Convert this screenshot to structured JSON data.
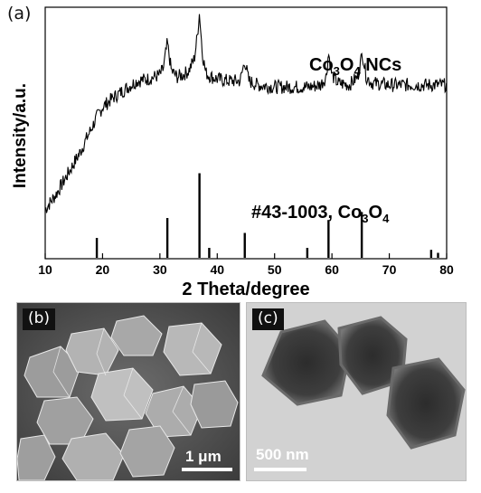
{
  "panel_a_label": "(a)",
  "panel_b_label": "(b)",
  "panel_c_label": "(c)",
  "sem_scale": "1 μm",
  "tem_scale": "500 nm",
  "chart_data": {
    "type": "line",
    "xlabel": "2 Theta/degree",
    "ylabel": "Intensity/a.u.",
    "xlim": [
      10,
      80
    ],
    "xticks": [
      10,
      20,
      30,
      40,
      50,
      60,
      70,
      80
    ],
    "sample_label": {
      "main": "Co",
      "sub1": "3",
      "mid": "O",
      "sub2": "4",
      "tail": " NCs"
    },
    "reference_label": {
      "main": "#43-1003, Co",
      "sub1": "3",
      "mid": "O",
      "sub2": "4"
    },
    "series": [
      {
        "name": "Co3O4 NCs",
        "x": [
          10,
          12,
          14,
          16,
          17,
          18,
          19,
          20,
          22,
          24,
          26,
          28,
          29,
          30,
          30.6,
          31.3,
          32,
          33,
          34,
          35,
          36,
          36.5,
          36.9,
          37.4,
          38,
          39,
          40,
          42,
          44,
          44.8,
          45.5,
          47,
          50,
          53,
          56,
          58,
          59,
          59.4,
          60,
          61,
          63,
          64.5,
          65.3,
          66,
          67,
          70,
          73,
          76,
          80
        ],
        "y": [
          0.02,
          0.1,
          0.2,
          0.3,
          0.36,
          0.42,
          0.48,
          0.53,
          0.58,
          0.62,
          0.66,
          0.67,
          0.68,
          0.69,
          0.72,
          0.85,
          0.71,
          0.68,
          0.69,
          0.71,
          0.77,
          0.88,
          1.0,
          0.8,
          0.7,
          0.68,
          0.67,
          0.66,
          0.66,
          0.76,
          0.66,
          0.64,
          0.63,
          0.63,
          0.63,
          0.64,
          0.68,
          0.8,
          0.69,
          0.65,
          0.64,
          0.68,
          0.8,
          0.68,
          0.65,
          0.64,
          0.64,
          0.64,
          0.64
        ]
      },
      {
        "name": "#43-1003, Co3O4",
        "type": "stick",
        "x": [
          19.0,
          31.3,
          36.9,
          38.6,
          44.8,
          55.7,
          59.4,
          65.2,
          77.3,
          78.5
        ],
        "y": [
          0.2,
          0.4,
          0.85,
          0.1,
          0.25,
          0.1,
          0.38,
          0.46,
          0.08,
          0.05
        ]
      }
    ]
  }
}
